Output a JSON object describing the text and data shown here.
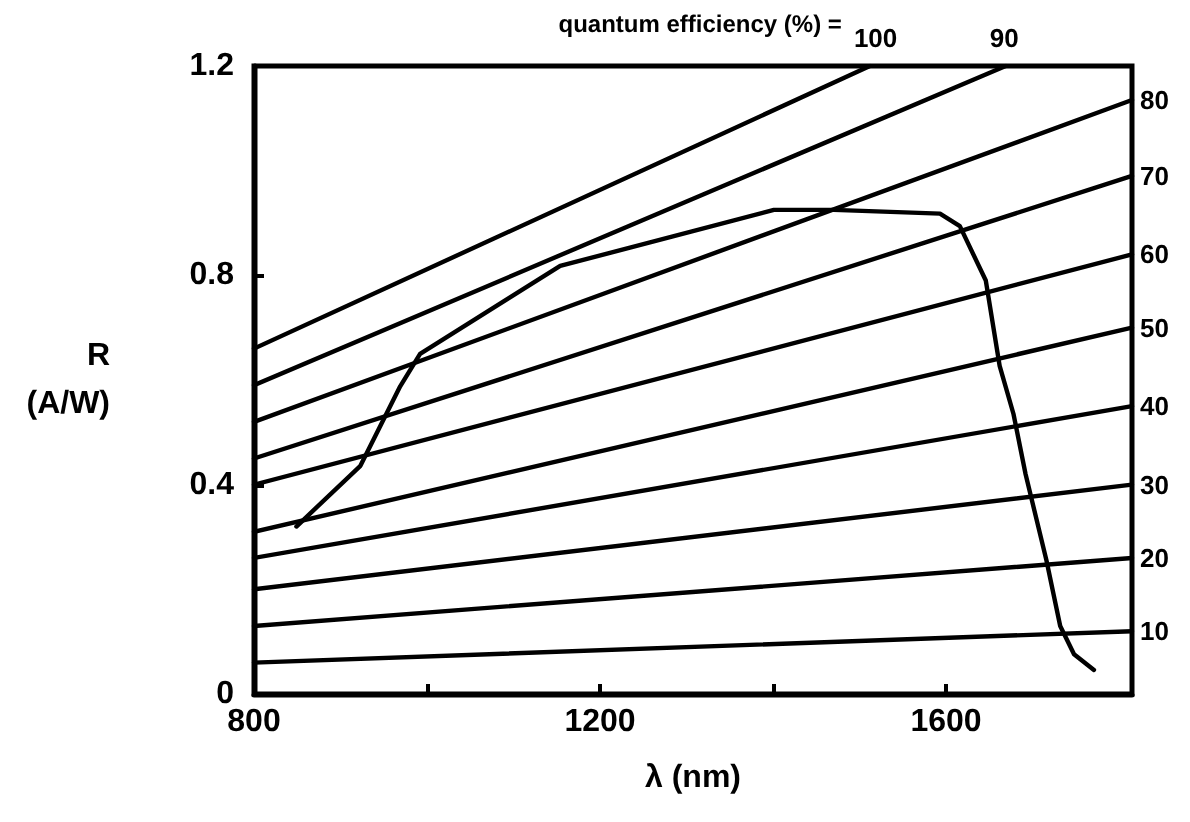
{
  "chart_data": {
    "type": "line",
    "xlabel": "λ (nm)",
    "ylabel": "R\n(A/W)",
    "annotations": [
      "quantum efficiency (%) ="
    ],
    "xlim": [
      800,
      1815
    ],
    "ylim": [
      0,
      1.2
    ],
    "xticks": [
      800,
      {
        "value": 1000,
        "label": null
      },
      1200,
      {
        "value": 1400,
        "label": null
      },
      1600
    ],
    "yticks": [
      0,
      0.4,
      0.8,
      1.2
    ],
    "grid": false,
    "legend": false,
    "marker": "none",
    "line_style": "solid",
    "series": [
      {
        "name": "100",
        "color": "#000000",
        "x": [
          800,
          1512
        ],
        "values": [
          0.66,
          1.2
        ]
      },
      {
        "name": "90",
        "color": "#000000",
        "x": [
          800,
          1669
        ],
        "values": [
          0.59,
          1.2
        ]
      },
      {
        "name": "80",
        "color": "#000000",
        "x": [
          800,
          1815
        ],
        "values": [
          0.52,
          1.135
        ]
      },
      {
        "name": "70",
        "color": "#000000",
        "x": [
          800,
          1815
        ],
        "values": [
          0.45,
          0.99
        ]
      },
      {
        "name": "60",
        "color": "#000000",
        "x": [
          800,
          1815
        ],
        "values": [
          0.4,
          0.84
        ]
      },
      {
        "name": "50",
        "color": "#000000",
        "x": [
          800,
          1815
        ],
        "values": [
          0.31,
          0.7
        ]
      },
      {
        "name": "40",
        "color": "#000000",
        "x": [
          800,
          1815
        ],
        "values": [
          0.26,
          0.55
        ]
      },
      {
        "name": "30",
        "color": "#000000",
        "x": [
          800,
          1815
        ],
        "values": [
          0.2,
          0.4
        ]
      },
      {
        "name": "20",
        "color": "#000000",
        "x": [
          800,
          1815
        ],
        "values": [
          0.13,
          0.26
        ]
      },
      {
        "name": "10",
        "color": "#000000",
        "x": [
          800,
          1815
        ],
        "values": [
          0.06,
          0.12
        ]
      },
      {
        "color": "#000000",
        "x": [
          849,
          923,
          969,
          992,
          1154,
          1401,
          1470,
          1593,
          1616,
          1646,
          1662,
          1678,
          1692,
          1716,
          1732,
          1748,
          1771
        ],
        "values": [
          0.32,
          0.436,
          0.588,
          0.65,
          0.818,
          0.925,
          0.925,
          0.918,
          0.894,
          0.79,
          0.627,
          0.535,
          0.42,
          0.256,
          0.13,
          0.076,
          0.046
        ]
      }
    ]
  }
}
